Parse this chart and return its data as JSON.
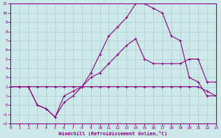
{
  "xlabel": "Windchill (Refroidissement éolien,°C)",
  "bg_color": "#cce8e8",
  "grid_color": "#aacccc",
  "line_color": "#880088",
  "line1_x": [
    0,
    1,
    2,
    3,
    4,
    5,
    6,
    7,
    8,
    9,
    10,
    11,
    12,
    13,
    14,
    15,
    16,
    17,
    18,
    19,
    20,
    21,
    22,
    23
  ],
  "line1_y": [
    2,
    2,
    2,
    0,
    -0.4,
    -1.3,
    1.0,
    1.5,
    2.0,
    3.5,
    5.5,
    7.5,
    8.5,
    9.5,
    11.0,
    11.0,
    10.5,
    10.0,
    7.5,
    7.0,
    3.0,
    2.5,
    1.0,
    1.0
  ],
  "line2_x": [
    0,
    1,
    2,
    3,
    4,
    5,
    6,
    7,
    8,
    9,
    10,
    11,
    12,
    13,
    14,
    15,
    16,
    17,
    18,
    19,
    20,
    21,
    22,
    23
  ],
  "line2_y": [
    2,
    2,
    2,
    0,
    -0.4,
    -1.3,
    0.3,
    1.0,
    2.0,
    3.0,
    3.5,
    4.5,
    5.5,
    6.5,
    7.2,
    5.0,
    4.5,
    4.5,
    4.5,
    4.5,
    5.0,
    5.0,
    2.5,
    2.5
  ],
  "line3_x": [
    0,
    1,
    2,
    3,
    4,
    5,
    6,
    7,
    8,
    9,
    10,
    11,
    12,
    13,
    14,
    15,
    16,
    17,
    18,
    19,
    20,
    21,
    22,
    23
  ],
  "line3_y": [
    2.0,
    2.0,
    2.0,
    2.0,
    2.0,
    2.0,
    2.0,
    2.0,
    2.0,
    2.0,
    2.0,
    2.0,
    2.0,
    2.0,
    2.0,
    2.0,
    2.0,
    2.0,
    2.0,
    2.0,
    2.0,
    2.0,
    1.5,
    1.0
  ],
  "xlim": [
    0,
    23
  ],
  "ylim": [
    -2,
    11
  ],
  "xticks": [
    0,
    1,
    2,
    3,
    4,
    5,
    6,
    7,
    8,
    9,
    10,
    11,
    12,
    13,
    14,
    15,
    16,
    17,
    18,
    19,
    20,
    21,
    22,
    23
  ],
  "yticks": [
    -2,
    -1,
    0,
    1,
    2,
    3,
    4,
    5,
    6,
    7,
    8,
    9,
    10,
    11
  ]
}
